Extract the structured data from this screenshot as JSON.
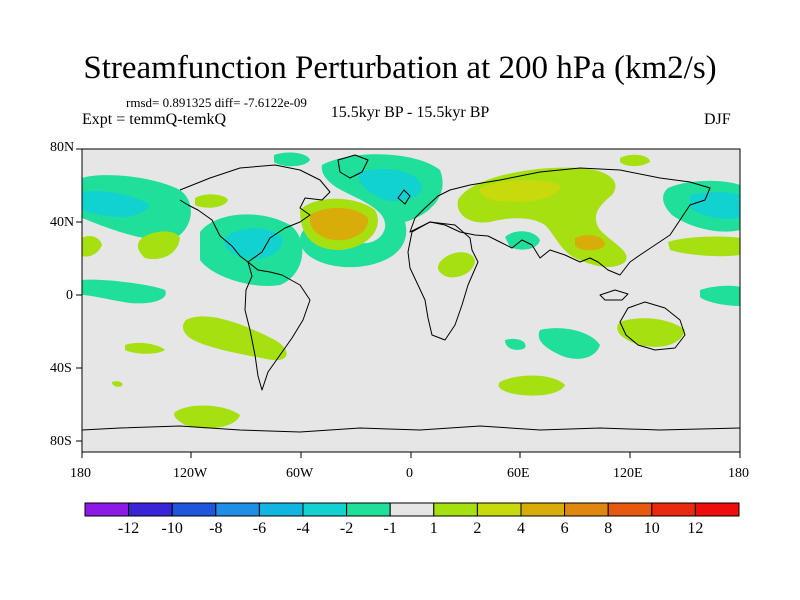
{
  "title": "Streamfunction Perturbation at 200 hPa (km2/s)",
  "stats_line": "rmsd= 0.891325 diff= -7.6122e-09",
  "expt_label": "Expt = temmQ-temkQ",
  "period_label": "15.5kyr BP - 15.5kyr BP",
  "season_label": "DJF",
  "axes": {
    "lat_ticks": [
      "80N",
      "40N",
      "0",
      "40S",
      "80S"
    ],
    "lon_ticks": [
      "180",
      "120W",
      "60W",
      "0",
      "60E",
      "120E",
      "180"
    ]
  },
  "colorbar": {
    "labels": [
      "-12",
      "-10",
      "-8",
      "-6",
      "-4",
      "-2",
      "-1",
      "1",
      "2",
      "4",
      "6",
      "8",
      "10",
      "12"
    ],
    "colors": [
      "#8b1ae6",
      "#3a25d6",
      "#1f55dc",
      "#1f8ee6",
      "#12b5df",
      "#12d2d0",
      "#1fdf9a",
      "#e6e6e6",
      "#a6e011",
      "#c8d90c",
      "#d8ad0a",
      "#e08710",
      "#e65a10",
      "#ea2a10",
      "#ee0d0d"
    ]
  },
  "colors": {
    "background_field": "#e6e6e6",
    "coastline": "#000000"
  }
}
